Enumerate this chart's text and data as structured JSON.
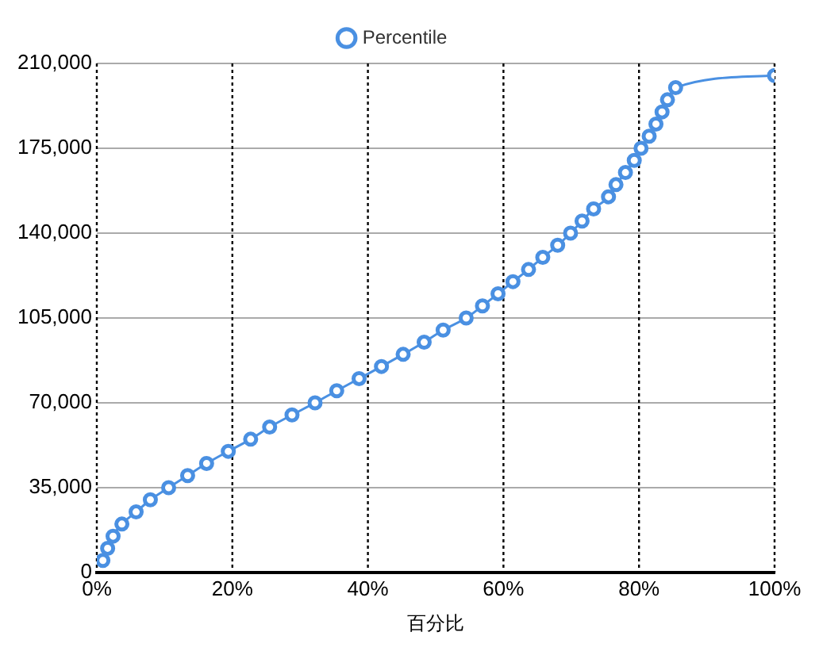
{
  "chart_data": {
    "type": "line",
    "xlabel": "百分比",
    "series": [
      {
        "name": "Percentile",
        "color": "#4a90e2",
        "x": [
          0.9,
          1.6,
          2.4,
          3.7,
          5.8,
          7.9,
          10.6,
          13.4,
          16.2,
          19.4,
          22.7,
          25.5,
          28.8,
          32.2,
          35.4,
          38.7,
          42.0,
          45.2,
          48.3,
          51.1,
          54.5,
          56.9,
          59.2,
          61.4,
          63.7,
          65.8,
          68.0,
          69.9,
          71.6,
          73.3,
          75.5,
          76.6,
          78.0,
          79.3,
          80.3,
          81.5,
          82.5,
          83.4,
          84.2,
          85.4,
          100
        ],
        "values": [
          5000,
          10000,
          15000,
          20000,
          25000,
          30000,
          35000,
          40000,
          45000,
          50000,
          55000,
          60000,
          65000,
          70000,
          75000,
          80000,
          85000,
          90000,
          95000,
          100000,
          105000,
          110000,
          115000,
          120000,
          125000,
          130000,
          135000,
          140000,
          145000,
          150000,
          155000,
          160000,
          165000,
          170000,
          175000,
          180000,
          185000,
          190000,
          195000,
          200000,
          205000
        ]
      }
    ],
    "xlim": [
      0,
      100
    ],
    "xticks": [
      {
        "value": 0,
        "label": "0%"
      },
      {
        "value": 20,
        "label": "20%"
      },
      {
        "value": 40,
        "label": "40%"
      },
      {
        "value": 60,
        "label": "60%"
      },
      {
        "value": 80,
        "label": "80%"
      },
      {
        "value": 100,
        "label": "100%"
      }
    ],
    "ylim": [
      0,
      210000
    ],
    "yticks": [
      {
        "value": 0,
        "label": "0"
      },
      {
        "value": 35000,
        "label": "35,000"
      },
      {
        "value": 70000,
        "label": "70,000"
      },
      {
        "value": 105000,
        "label": "105,000"
      },
      {
        "value": 140000,
        "label": "140,000"
      },
      {
        "value": 175000,
        "label": "175,000"
      },
      {
        "value": 210000,
        "label": "210,000"
      }
    ],
    "grid": true,
    "legend": "top",
    "marker": "circle",
    "line_style": "solid"
  }
}
